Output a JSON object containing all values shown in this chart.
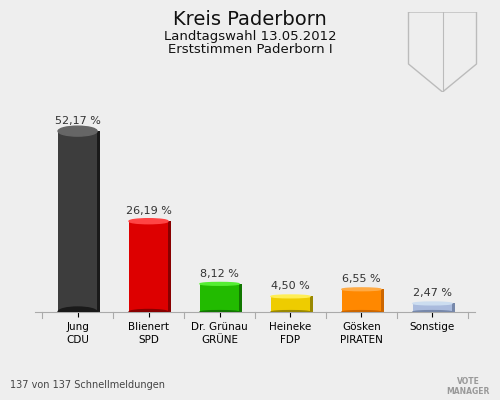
{
  "title": "Kreis Paderborn",
  "subtitle1": "Landtagswahl 13.05.2012",
  "subtitle2": "Erststimmen Paderborn I",
  "footer": "137 von 137 Schnellmeldungen",
  "categories": [
    "Jung\nCDU",
    "Blienert\nSPD",
    "Dr. Grünau\nGRÜNE",
    "Heineke\nFDP",
    "Gösken\nPIRATEN",
    "Sonstige"
  ],
  "values": [
    52.17,
    26.19,
    8.12,
    4.5,
    6.55,
    2.47
  ],
  "value_labels": [
    "52,17 %",
    "26,19 %",
    "8,12 %",
    "4,50 %",
    "6,55 %",
    "2,47 %"
  ],
  "bar_colors": [
    "#3d3d3d",
    "#dd0000",
    "#22bb00",
    "#eecc00",
    "#ff8800",
    "#aabbdd"
  ],
  "shadow_colors": [
    "#1a1a1a",
    "#880000",
    "#117700",
    "#998800",
    "#cc6600",
    "#7788aa"
  ],
  "top_colors": [
    "#666666",
    "#ff4444",
    "#55ee33",
    "#ffee55",
    "#ffaa44",
    "#ccddf0"
  ],
  "background_color": "#eeeeee",
  "title_fontsize": 14,
  "subtitle_fontsize": 9.5,
  "bar_width": 0.55,
  "ylim": [
    0,
    60
  ],
  "xlim": [
    -0.6,
    5.6
  ]
}
